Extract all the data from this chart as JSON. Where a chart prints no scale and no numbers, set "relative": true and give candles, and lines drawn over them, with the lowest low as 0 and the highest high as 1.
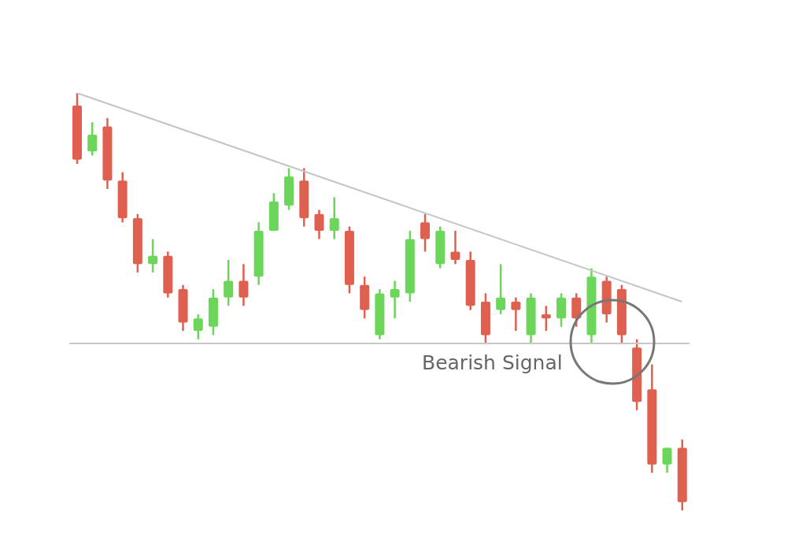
{
  "chart_data": {
    "type": "candlestick",
    "relative": true,
    "categories": [
      null,
      null,
      null,
      null,
      null,
      null,
      null,
      null,
      null,
      null,
      null,
      null,
      null,
      null,
      null,
      null,
      null,
      null,
      null,
      null,
      null,
      null,
      null,
      null,
      null,
      null,
      null,
      null,
      null,
      null,
      null,
      null,
      null,
      null,
      null,
      null,
      null,
      null,
      null,
      null,
      null
    ],
    "ohlc": [
      [
        0.97,
        1.0,
        0.83,
        0.84
      ],
      [
        0.86,
        0.93,
        0.85,
        0.9
      ],
      [
        0.92,
        0.94,
        0.77,
        0.79
      ],
      [
        0.79,
        0.81,
        0.69,
        0.7
      ],
      [
        0.7,
        0.71,
        0.57,
        0.59
      ],
      [
        0.59,
        0.65,
        0.57,
        0.61
      ],
      [
        0.61,
        0.62,
        0.51,
        0.52
      ],
      [
        0.53,
        0.54,
        0.43,
        0.45
      ],
      [
        0.43,
        0.47,
        0.41,
        0.46
      ],
      [
        0.44,
        0.53,
        0.42,
        0.51
      ],
      [
        0.51,
        0.6,
        0.49,
        0.55
      ],
      [
        0.55,
        0.59,
        0.49,
        0.51
      ],
      [
        0.56,
        0.69,
        0.54,
        0.67
      ],
      [
        0.67,
        0.76,
        0.67,
        0.74
      ],
      [
        0.73,
        0.82,
        0.72,
        0.8
      ],
      [
        0.79,
        0.82,
        0.68,
        0.7
      ],
      [
        0.71,
        0.72,
        0.65,
        0.67
      ],
      [
        0.67,
        0.75,
        0.65,
        0.7
      ],
      [
        0.67,
        0.68,
        0.52,
        0.54
      ],
      [
        0.54,
        0.56,
        0.46,
        0.48
      ],
      [
        0.42,
        0.53,
        0.41,
        0.52
      ],
      [
        0.51,
        0.55,
        0.46,
        0.53
      ],
      [
        0.52,
        0.67,
        0.5,
        0.65
      ],
      [
        0.69,
        0.71,
        0.62,
        0.65
      ],
      [
        0.59,
        0.68,
        0.58,
        0.67
      ],
      [
        0.62,
        0.67,
        0.59,
        0.6
      ],
      [
        0.6,
        0.62,
        0.48,
        0.49
      ],
      [
        0.5,
        0.52,
        0.4,
        0.42
      ],
      [
        0.48,
        0.59,
        0.47,
        0.51
      ],
      [
        0.5,
        0.51,
        0.43,
        0.48
      ],
      [
        0.42,
        0.52,
        0.4,
        0.51
      ],
      [
        0.47,
        0.49,
        0.43,
        0.46
      ],
      [
        0.46,
        0.52,
        0.44,
        0.51
      ],
      [
        0.51,
        0.52,
        0.44,
        0.46
      ],
      [
        0.42,
        0.58,
        0.4,
        0.56
      ],
      [
        0.55,
        0.56,
        0.45,
        0.47
      ],
      [
        0.53,
        0.54,
        0.4,
        0.42
      ],
      [
        0.39,
        0.41,
        0.24,
        0.26
      ],
      [
        0.29,
        0.35,
        0.09,
        0.11
      ],
      [
        0.11,
        0.15,
        0.09,
        0.15
      ],
      [
        0.15,
        0.17,
        0.0,
        0.02
      ]
    ],
    "colors": [
      "#e0604f",
      "#6bd65a",
      "#e0604f",
      "#e0604f",
      "#e0604f",
      "#6bd65a",
      "#e0604f",
      "#e0604f",
      "#6bd65a",
      "#6bd65a",
      "#6bd65a",
      "#e0604f",
      "#6bd65a",
      "#6bd65a",
      "#6bd65a",
      "#e0604f",
      "#e0604f",
      "#6bd65a",
      "#e0604f",
      "#e0604f",
      "#6bd65a",
      "#6bd65a",
      "#6bd65a",
      "#e0604f",
      "#6bd65a",
      "#e0604f",
      "#e0604f",
      "#e0604f",
      "#6bd65a",
      "#e0604f",
      "#6bd65a",
      "#e0604f",
      "#6bd65a",
      "#e0604f",
      "#6bd65a",
      "#e0604f",
      "#e0604f",
      "#e0604f",
      "#e0604f",
      "#6bd65a",
      "#e0604f"
    ],
    "series": [
      {
        "type": "line",
        "color": "#c4c4c4",
        "values": [
          1.0,
          null,
          null,
          null,
          null,
          null,
          null,
          null,
          null,
          null,
          null,
          null,
          null,
          null,
          null,
          null,
          null,
          null,
          null,
          null,
          null,
          null,
          null,
          null,
          null,
          null,
          null,
          null,
          null,
          null,
          null,
          null,
          null,
          null,
          null,
          null,
          null,
          null,
          null,
          null,
          0.5
        ]
      }
    ],
    "ref_lines": [
      {
        "axis": "y",
        "value": 0.4,
        "color": "#c8c8c8"
      }
    ],
    "annotations": [
      "Bearish Signal"
    ]
  }
}
